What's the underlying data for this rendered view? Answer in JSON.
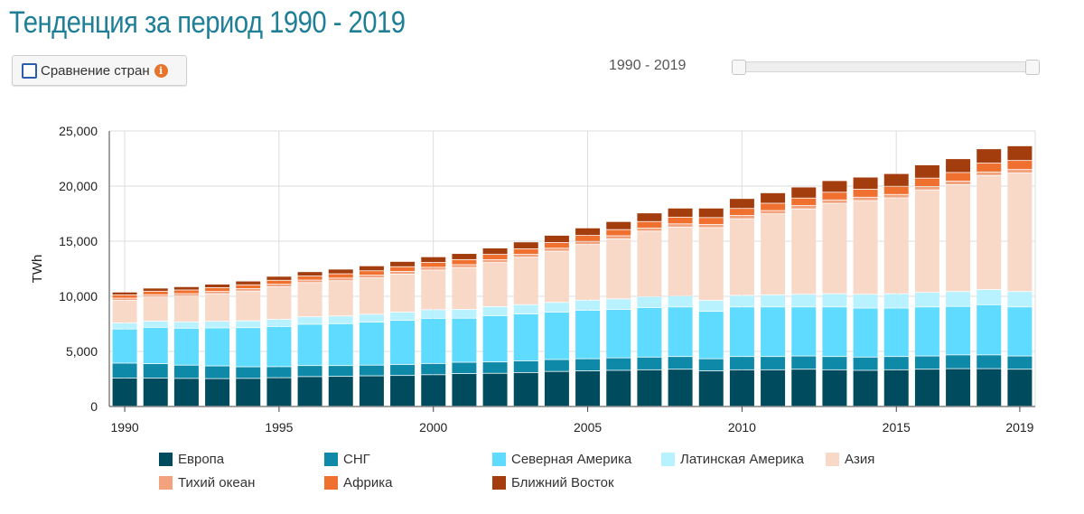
{
  "header": {
    "title": "Тенденция за период 1990 - 2019"
  },
  "controls": {
    "compare_label": "Сравнение стран",
    "info_glyph": "i",
    "range_label": "1990 - 2019",
    "range_start": 1990,
    "range_end": 2019
  },
  "chart_data": {
    "type": "bar",
    "stacked": true,
    "title": "Тенденция за период 1990 - 2019",
    "xlabel": "",
    "ylabel": "TWh",
    "ylim": [
      0,
      25000
    ],
    "yticks": [
      0,
      5000,
      10000,
      15000,
      20000,
      25000
    ],
    "ytick_labels": [
      "0",
      "5,000",
      "10,000",
      "15,000",
      "20,000",
      "25,000"
    ],
    "xticks": [
      1990,
      1995,
      2000,
      2005,
      2010,
      2015,
      2019
    ],
    "grid": true,
    "legend_position": "bottom",
    "categories": [
      1990,
      1991,
      1992,
      1993,
      1994,
      1995,
      1996,
      1997,
      1998,
      1999,
      2000,
      2001,
      2002,
      2003,
      2004,
      2005,
      2006,
      2007,
      2008,
      2009,
      2010,
      2011,
      2012,
      2013,
      2014,
      2015,
      2016,
      2017,
      2018,
      2019
    ],
    "series": [
      {
        "name": "Европа",
        "color": "#004b5e",
        "values": [
          2550,
          2550,
          2520,
          2500,
          2520,
          2580,
          2680,
          2700,
          2750,
          2780,
          2850,
          2950,
          2980,
          3050,
          3150,
          3200,
          3250,
          3300,
          3350,
          3200,
          3300,
          3300,
          3350,
          3300,
          3250,
          3300,
          3350,
          3400,
          3400,
          3350
        ]
      },
      {
        "name": "СНГ",
        "color": "#0e8aa8",
        "values": [
          1350,
          1300,
          1200,
          1150,
          1050,
          1000,
          1000,
          980,
          970,
          1000,
          1020,
          1030,
          1030,
          1060,
          1080,
          1100,
          1130,
          1150,
          1150,
          1100,
          1200,
          1200,
          1200,
          1200,
          1200,
          1200,
          1200,
          1250,
          1250,
          1200
        ]
      },
      {
        "name": "Северная Америка",
        "color": "#5edbff",
        "values": [
          3100,
          3300,
          3350,
          3450,
          3550,
          3650,
          3750,
          3800,
          3900,
          4000,
          4100,
          4000,
          4200,
          4250,
          4300,
          4400,
          4400,
          4500,
          4500,
          4300,
          4500,
          4500,
          4450,
          4500,
          4450,
          4400,
          4450,
          4400,
          4550,
          4450
        ]
      },
      {
        "name": "Латинская Америка",
        "color": "#b8f1ff",
        "values": [
          550,
          560,
          580,
          600,
          620,
          650,
          680,
          700,
          720,
          750,
          780,
          800,
          820,
          850,
          880,
          920,
          950,
          980,
          1000,
          1000,
          1050,
          1100,
          1150,
          1200,
          1250,
          1300,
          1320,
          1350,
          1380,
          1400
        ]
      },
      {
        "name": "Азия",
        "color": "#f8d9c8",
        "values": [
          2050,
          2200,
          2350,
          2500,
          2700,
          2950,
          3100,
          3200,
          3300,
          3450,
          3600,
          3800,
          4000,
          4300,
          4650,
          5050,
          5450,
          5950,
          6250,
          6600,
          6950,
          7350,
          7750,
          8200,
          8500,
          8700,
          9300,
          9700,
          10350,
          10750
        ]
      },
      {
        "name": "Тихий океан",
        "color": "#f2a27d",
        "values": [
          200,
          200,
          210,
          210,
          220,
          230,
          230,
          240,
          240,
          250,
          250,
          260,
          260,
          270,
          270,
          280,
          280,
          280,
          290,
          290,
          300,
          300,
          300,
          310,
          310,
          310,
          310,
          320,
          320,
          320
        ]
      },
      {
        "name": "Африка",
        "color": "#f07030",
        "values": [
          300,
          320,
          330,
          340,
          350,
          360,
          370,
          390,
          400,
          420,
          440,
          460,
          480,
          500,
          520,
          540,
          560,
          590,
          610,
          620,
          640,
          660,
          680,
          700,
          720,
          740,
          760,
          780,
          800,
          820
        ]
      },
      {
        "name": "Ближний Восток",
        "color": "#a43d0e",
        "values": [
          250,
          280,
          300,
          320,
          340,
          360,
          390,
          420,
          450,
          480,
          510,
          550,
          580,
          620,
          650,
          680,
          730,
          780,
          820,
          860,
          900,
          950,
          1000,
          1050,
          1100,
          1150,
          1200,
          1250,
          1300,
          1330
        ]
      }
    ]
  }
}
